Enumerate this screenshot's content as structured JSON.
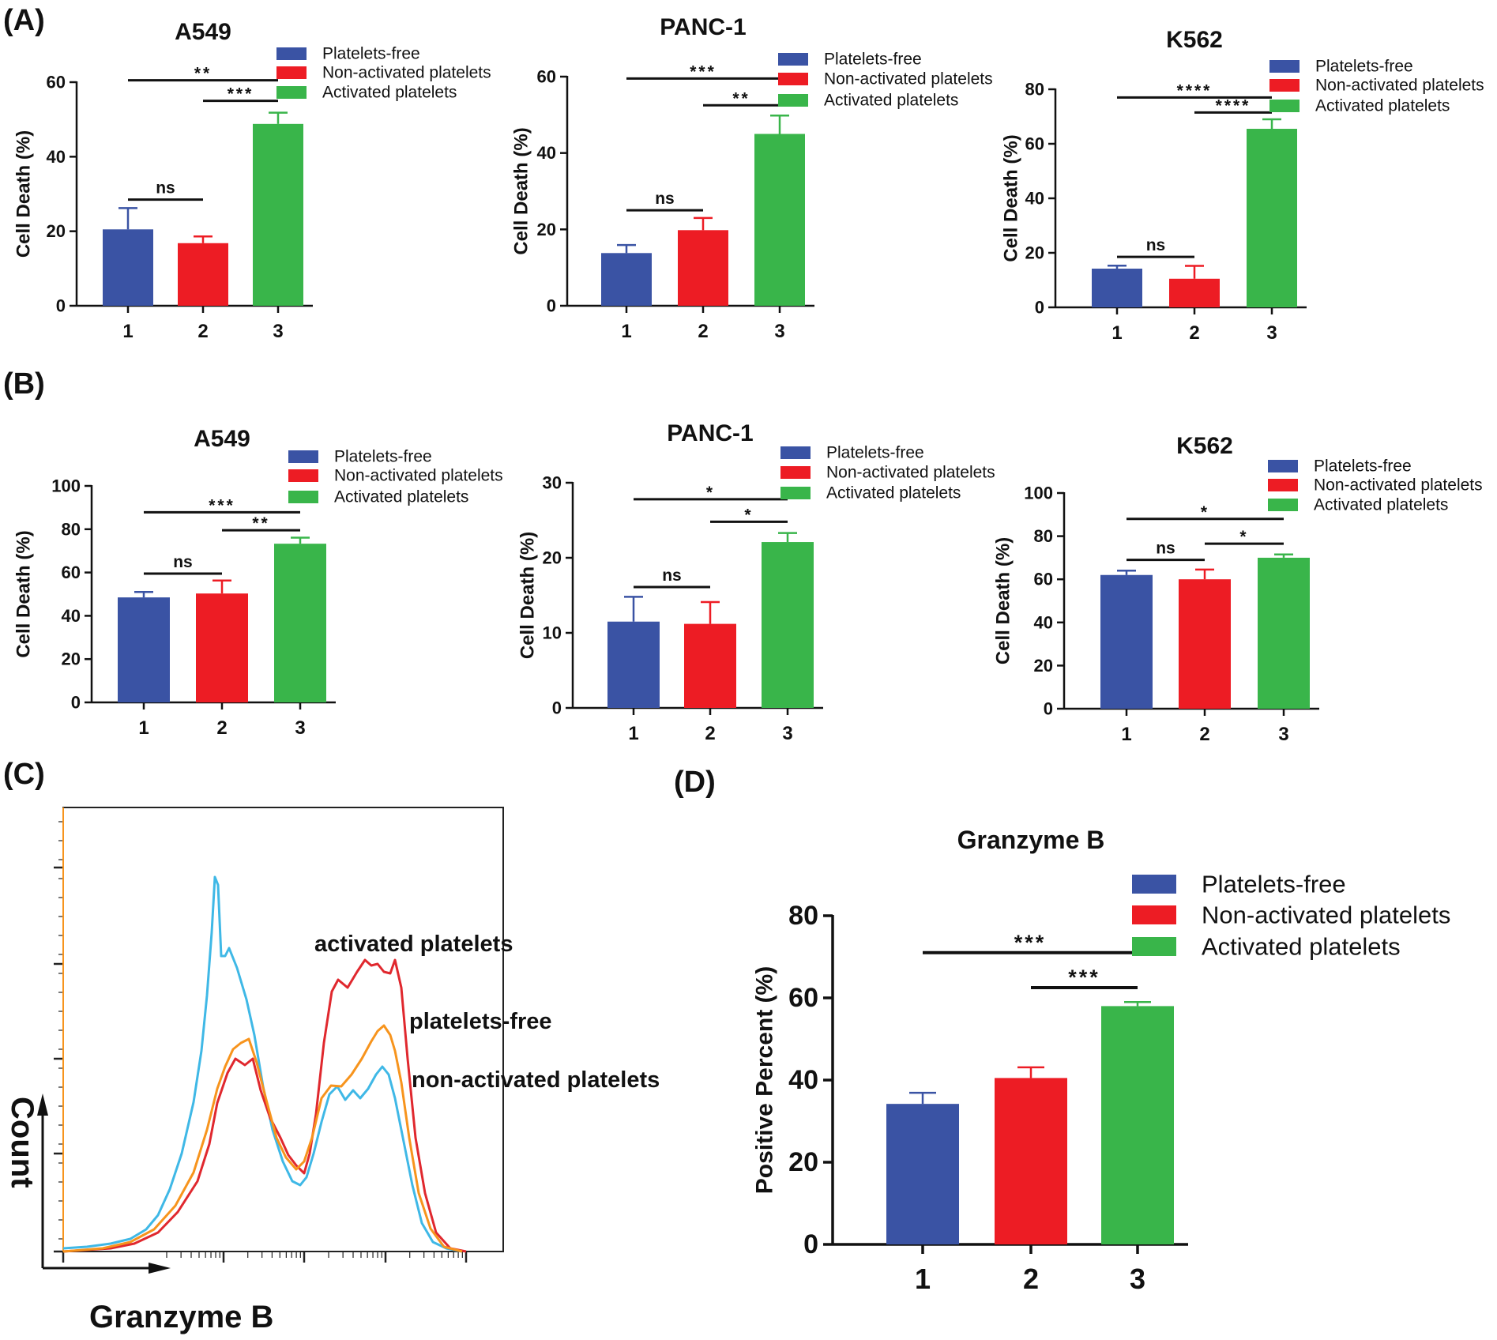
{
  "panels": {
    "A": "(A)",
    "B": "(B)",
    "C": "(C)",
    "D": "(D)"
  },
  "colors": {
    "platelets_free": "#3a53a4",
    "non_activated": "#ed1c24",
    "activated": "#39b54a",
    "hist_blue": "#3fb8e6",
    "hist_orange": "#f7941d",
    "hist_red": "#e0282e"
  },
  "histogram": {
    "ylabel": "Count",
    "xlabel": "Granzyme B",
    "labels": [
      "activated platelets",
      "platelets-free",
      "non-activated platelets"
    ]
  },
  "chart_data": [
    {
      "id": "A1",
      "type": "bar",
      "title": "A549",
      "ylabel": "Cell Death (%)",
      "categories": [
        "1",
        "2",
        "3"
      ],
      "values": [
        20.5,
        16.8,
        48.8
      ],
      "errors": [
        5.7,
        1.8,
        3.0
      ],
      "ylim": [
        0,
        60
      ],
      "yticks": [
        0,
        20,
        40,
        60
      ],
      "legend": [
        "Platelets-free",
        "Non-activated platelets",
        "Activated platelets"
      ],
      "significance": [
        {
          "from": 1,
          "to": 3,
          "label": "**",
          "y": 60.5
        },
        {
          "from": 2,
          "to": 3,
          "label": "***",
          "y": 55.0
        },
        {
          "from": 1,
          "to": 2,
          "label": "ns",
          "y": 28.5
        }
      ]
    },
    {
      "id": "A2",
      "type": "bar",
      "title": "PANC-1",
      "ylabel": "Cell Death (%)",
      "categories": [
        "1",
        "2",
        "3"
      ],
      "values": [
        13.8,
        19.8,
        45.0
      ],
      "errors": [
        2.1,
        3.2,
        4.8
      ],
      "ylim": [
        0,
        60
      ],
      "yticks": [
        0,
        20,
        40,
        60
      ],
      "legend": [
        "Platelets-free",
        "Non-activated platelets",
        "Activated platelets"
      ],
      "significance": [
        {
          "from": 1,
          "to": 3,
          "label": "***",
          "y": 59.5
        },
        {
          "from": 2,
          "to": 3,
          "label": "**",
          "y": 52.5
        },
        {
          "from": 1,
          "to": 2,
          "label": "ns",
          "y": 25.0
        }
      ]
    },
    {
      "id": "A3",
      "type": "bar",
      "title": "K562",
      "ylabel": "Cell Death (%)",
      "categories": [
        "1",
        "2",
        "3"
      ],
      "values": [
        14.2,
        10.5,
        65.5
      ],
      "errors": [
        1.1,
        4.7,
        3.5
      ],
      "ylim": [
        0,
        80
      ],
      "yticks": [
        0,
        20,
        40,
        60,
        80
      ],
      "legend": [
        "Platelets-free",
        "Non-activated platelets",
        "Activated platelets"
      ],
      "significance": [
        {
          "from": 1,
          "to": 3,
          "label": "****",
          "y": 77.0
        },
        {
          "from": 2,
          "to": 3,
          "label": "****",
          "y": 71.5
        },
        {
          "from": 1,
          "to": 2,
          "label": "ns",
          "y": 18.5
        }
      ]
    },
    {
      "id": "B1",
      "type": "bar",
      "title": "A549",
      "ylabel": "Cell Death (%)",
      "categories": [
        "1",
        "2",
        "3"
      ],
      "values": [
        48.5,
        50.3,
        73.3
      ],
      "errors": [
        2.5,
        6.0,
        2.8
      ],
      "ylim": [
        0,
        100
      ],
      "yticks": [
        0,
        20,
        40,
        60,
        80,
        100
      ],
      "legend": [
        "Platelets-free",
        "Non-activated platelets",
        "Activated platelets"
      ],
      "significance": [
        {
          "from": 1,
          "to": 3,
          "label": "***",
          "y": 87.8
        },
        {
          "from": 2,
          "to": 3,
          "label": "**",
          "y": 79.5
        },
        {
          "from": 1,
          "to": 2,
          "label": "ns",
          "y": 59.5
        }
      ]
    },
    {
      "id": "B2",
      "type": "bar",
      "title": "PANC-1",
      "ylabel": "Cell Death (%)",
      "categories": [
        "1",
        "2",
        "3"
      ],
      "values": [
        11.5,
        11.2,
        22.1
      ],
      "errors": [
        3.3,
        2.9,
        1.2
      ],
      "ylim": [
        0,
        30
      ],
      "yticks": [
        0,
        10,
        20,
        30
      ],
      "legend": [
        "Platelets-free",
        "Non-activated platelets",
        "Activated platelets"
      ],
      "significance": [
        {
          "from": 1,
          "to": 3,
          "label": "*",
          "y": 27.8
        },
        {
          "from": 2,
          "to": 3,
          "label": "*",
          "y": 24.8
        },
        {
          "from": 1,
          "to": 2,
          "label": "ns",
          "y": 16.1
        }
      ]
    },
    {
      "id": "B3",
      "type": "bar",
      "title": "K562",
      "ylabel": "Cell Death (%)",
      "categories": [
        "1",
        "2",
        "3"
      ],
      "values": [
        62.0,
        60.0,
        70.0
      ],
      "errors": [
        2.0,
        4.5,
        1.5
      ],
      "ylim": [
        0,
        100
      ],
      "yticks": [
        0,
        20,
        40,
        60,
        80,
        100
      ],
      "legend": [
        "Platelets-free",
        "Non-activated platelets",
        "Activated platelets"
      ],
      "significance": [
        {
          "from": 1,
          "to": 3,
          "label": "*",
          "y": 88.0
        },
        {
          "from": 2,
          "to": 3,
          "label": "*",
          "y": 76.5
        },
        {
          "from": 1,
          "to": 2,
          "label": "ns",
          "y": 69.0
        }
      ]
    },
    {
      "id": "D",
      "type": "bar",
      "title": "Granzyme B",
      "ylabel": "Positive Percent (%)",
      "categories": [
        "1",
        "2",
        "3"
      ],
      "values": [
        34.2,
        40.5,
        58.0
      ],
      "errors": [
        2.7,
        2.6,
        1.0
      ],
      "ylim": [
        0,
        80
      ],
      "yticks": [
        0,
        20,
        40,
        60,
        80
      ],
      "legend": [
        "Platelets-free",
        "Non-activated platelets",
        "Activated platelets"
      ],
      "significance": [
        {
          "from": 1,
          "to": 3,
          "label": "***",
          "y": 71.0
        },
        {
          "from": 2,
          "to": 3,
          "label": "***",
          "y": 62.5
        }
      ]
    }
  ]
}
